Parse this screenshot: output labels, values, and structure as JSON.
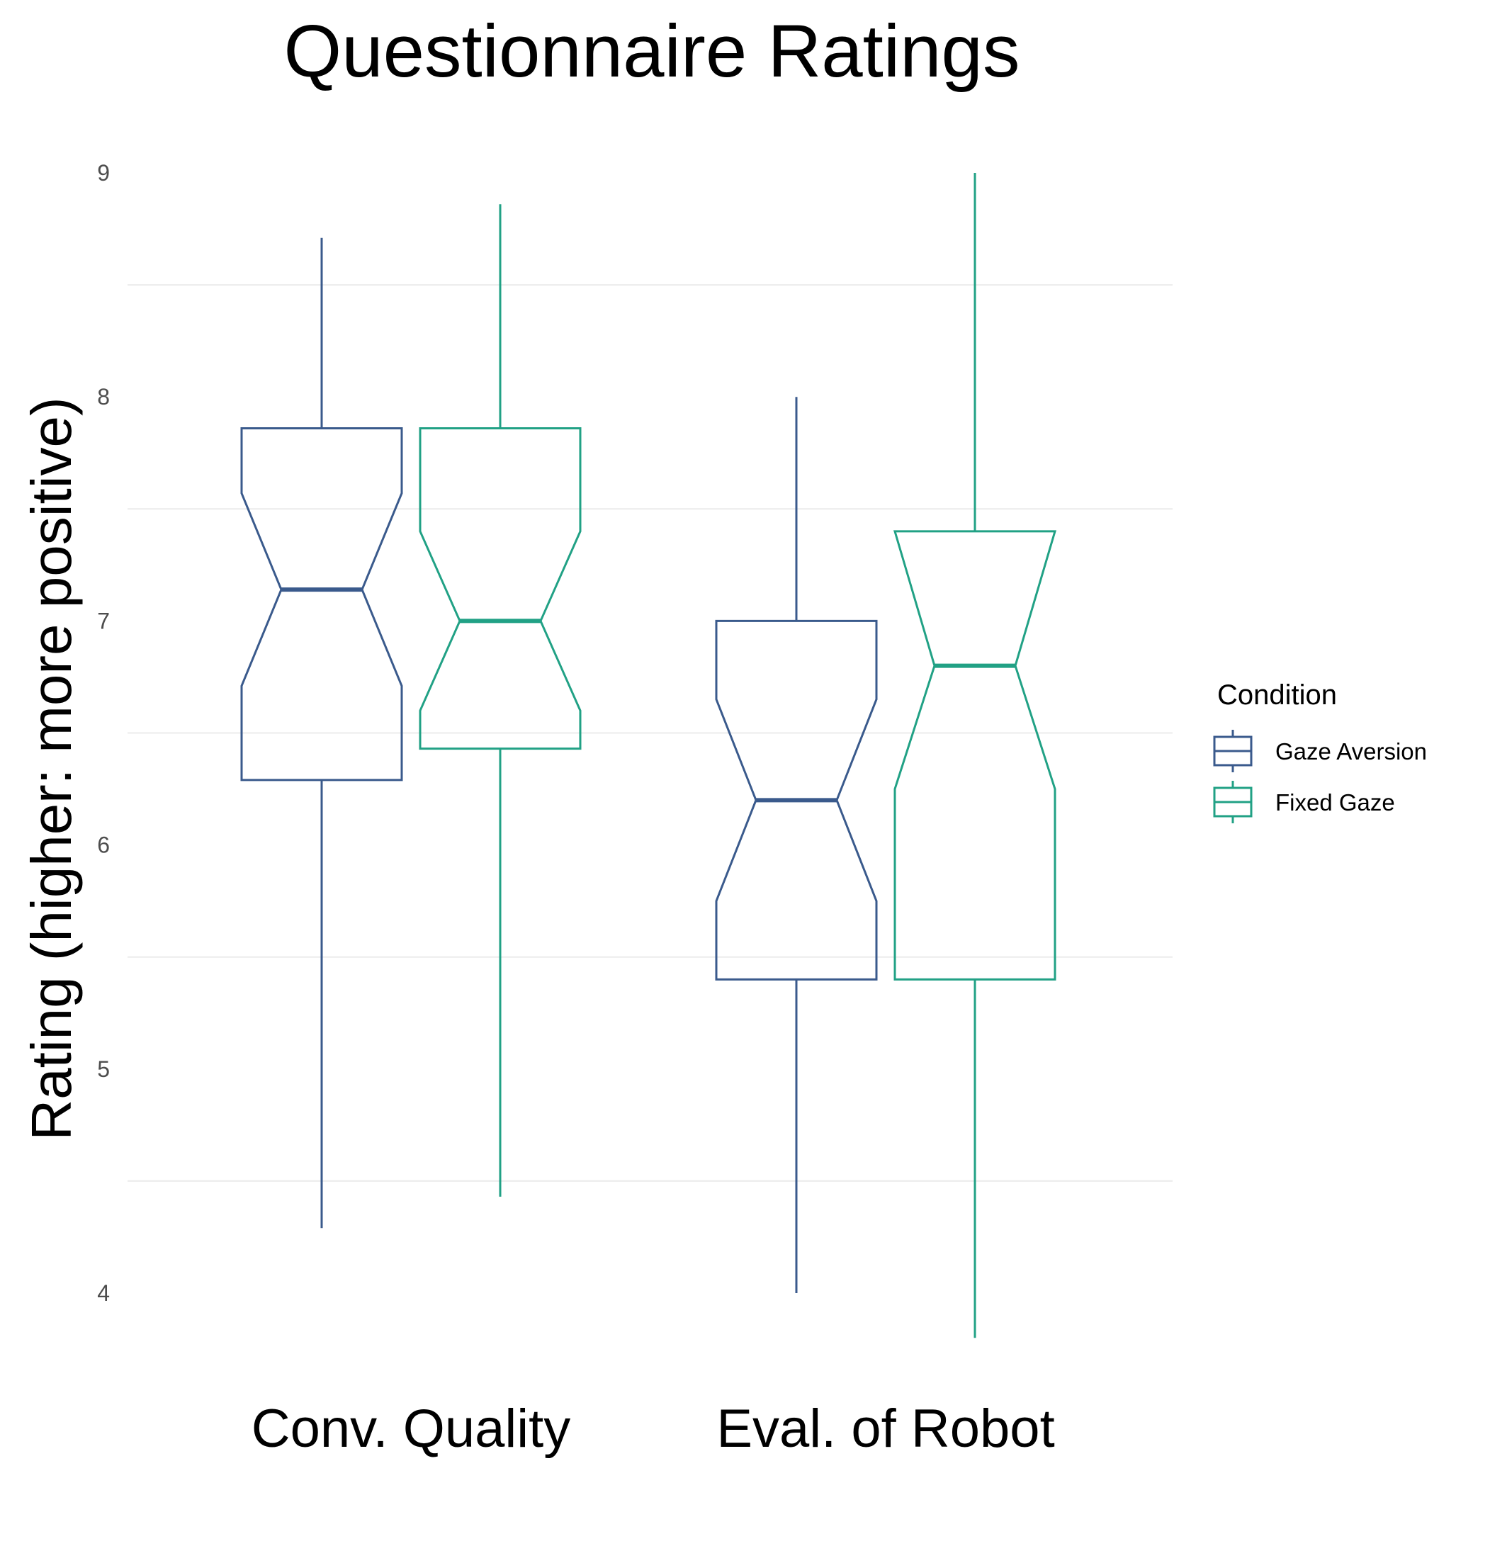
{
  "chart_data": {
    "type": "boxplot",
    "title": "Questionnaire Ratings",
    "xlabel": "",
    "ylabel": "Rating (higher: more positive)",
    "ylim": [
      3.8,
      9.0
    ],
    "yticks": [
      4,
      5,
      6,
      7,
      8,
      9
    ],
    "categories": [
      "Conv. Quality",
      "Eval. of Robot"
    ],
    "notched": true,
    "grid": "horizontal minor lines only",
    "legend": {
      "title": "Condition",
      "position": "right"
    },
    "series": [
      {
        "name": "Gaze Aversion",
        "color": "#3a5a8c",
        "boxes": [
          {
            "category": "Conv. Quality",
            "lower_whisker": 4.29,
            "q1": 6.29,
            "notch_low": 6.71,
            "median": 7.14,
            "notch_high": 7.57,
            "q3": 7.86,
            "upper_whisker": 8.71
          },
          {
            "category": "Eval. of Robot",
            "lower_whisker": 4.0,
            "q1": 5.4,
            "notch_low": 5.75,
            "median": 6.2,
            "notch_high": 6.65,
            "q3": 7.0,
            "upper_whisker": 8.0
          }
        ]
      },
      {
        "name": "Fixed Gaze",
        "color": "#21a185",
        "boxes": [
          {
            "category": "Conv. Quality",
            "lower_whisker": 4.43,
            "q1": 6.43,
            "notch_low": 6.6,
            "median": 7.0,
            "notch_high": 7.4,
            "q3": 7.86,
            "upper_whisker": 8.86
          },
          {
            "category": "Eval. of Robot",
            "lower_whisker": 3.8,
            "q1": 5.4,
            "notch_low": 6.25,
            "median": 6.8,
            "notch_high": 7.4,
            "q3": 7.4,
            "upper_whisker": 9.0
          }
        ]
      }
    ]
  }
}
